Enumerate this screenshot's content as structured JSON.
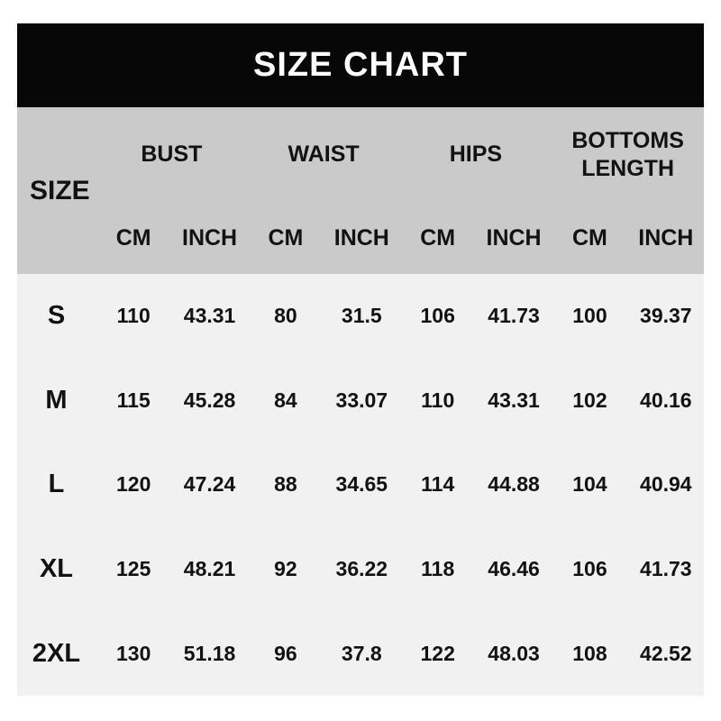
{
  "banner": {
    "title": "SIZE CHART"
  },
  "colors": {
    "page_bg": "#ffffff",
    "banner_bg": "#070707",
    "banner_text": "#ffffff",
    "header_bg": "#cacaca",
    "body_bg": "#f1f1f1",
    "text": "#121212"
  },
  "table": {
    "corner_label": "SIZE",
    "groups": [
      {
        "label": "BUST"
      },
      {
        "label": "WAIST"
      },
      {
        "label": "HIPS"
      },
      {
        "label": "BOTTOMS LENGTH"
      }
    ],
    "units": [
      "CM",
      "INCH",
      "CM",
      "INCH",
      "CM",
      "INCH",
      "CM",
      "INCH"
    ],
    "rows": [
      {
        "size": "S",
        "values": [
          "110",
          "43.31",
          "80",
          "31.5",
          "106",
          "41.73",
          "100",
          "39.37"
        ]
      },
      {
        "size": "M",
        "values": [
          "115",
          "45.28",
          "84",
          "33.07",
          "110",
          "43.31",
          "102",
          "40.16"
        ]
      },
      {
        "size": "L",
        "values": [
          "120",
          "47.24",
          "88",
          "34.65",
          "114",
          "44.88",
          "104",
          "40.94"
        ]
      },
      {
        "size": "XL",
        "values": [
          "125",
          "48.21",
          "92",
          "36.22",
          "118",
          "46.46",
          "106",
          "41.73"
        ]
      },
      {
        "size": "2XL",
        "values": [
          "130",
          "51.18",
          "96",
          "37.8",
          "122",
          "48.03",
          "108",
          "42.52"
        ]
      }
    ]
  },
  "chart_data": {
    "type": "table",
    "title": "SIZE CHART",
    "column_groups": [
      "BUST",
      "WAIST",
      "HIPS",
      "BOTTOMS LENGTH"
    ],
    "columns": [
      "SIZE",
      "BUST CM",
      "BUST INCH",
      "WAIST CM",
      "WAIST INCH",
      "HIPS CM",
      "HIPS INCH",
      "BOTTOMS LENGTH CM",
      "BOTTOMS LENGTH INCH"
    ],
    "rows": [
      [
        "S",
        110,
        43.31,
        80,
        31.5,
        106,
        41.73,
        100,
        39.37
      ],
      [
        "M",
        115,
        45.28,
        84,
        33.07,
        110,
        43.31,
        102,
        40.16
      ],
      [
        "L",
        120,
        47.24,
        88,
        34.65,
        114,
        44.88,
        104,
        40.94
      ],
      [
        "XL",
        125,
        48.21,
        92,
        36.22,
        118,
        46.46,
        106,
        41.73
      ],
      [
        "2XL",
        130,
        51.18,
        96,
        37.8,
        122,
        48.03,
        108,
        42.52
      ]
    ]
  }
}
